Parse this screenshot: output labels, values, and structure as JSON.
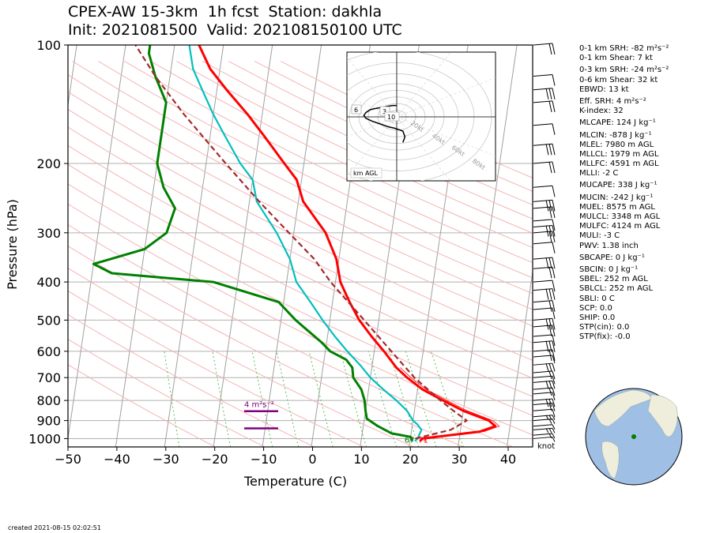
{
  "header": {
    "title_line1": "CPEX-AW 15-3km  1h fcst  Station: dakhla",
    "title_line2": "Init: 2021081500  Valid: 202108150100 UTC"
  },
  "stats": [
    "0-1 km SRH: -82 m²s⁻²",
    "0-1 km Shear: 7 kt",
    "0-3 km SRH: -24 m²s⁻²",
    "0-6 km Shear: 32 kt",
    "EBWD: 13 kt",
    "Eff. SRH: 4 m²s⁻²",
    "K-index: 32",
    "MLCAPE: 124 J kg⁻¹",
    "MLCIN: -878 J kg⁻¹",
    "MLEL: 7980 m AGL",
    "MLLCL: 1979 m AGL",
    "MLLFC: 4591 m AGL",
    "MLLI: -2 C",
    "MUCAPE: 338 J kg⁻¹",
    "MUCIN: -242 J kg⁻¹",
    "MUEL: 8575 m AGL",
    "MULCL: 3348 m AGL",
    "MULFC: 4124 m AGL",
    "MULI: -3 C",
    "PWV: 1.38 inch",
    "SBCAPE: 0 J kg⁻¹",
    "SBCIN: 0 J kg⁻¹",
    "SBEL: 252 m AGL",
    "SBLCL: 252 m AGL",
    "SBLI: 0 C",
    "SCP: 0.0",
    "SHIP: 0.0",
    "STP(cin): 0.0",
    "STP(fix): -0.0"
  ],
  "footer": {
    "created": "created 2021-08-15 02:02:51"
  },
  "knot_label": "knot",
  "colors": {
    "temperature": "#ff0000",
    "dewpoint": "#008000",
    "wetbulb": "#00bfbf",
    "parcel": "#a52a2a",
    "srh_layer": "#800080",
    "isotherm": "#a0a0a0",
    "dry_adiabat": "#f4b4b4",
    "mixing_ratio": "#5cbf5c"
  },
  "chart_data": {
    "type": "line",
    "xlabel": "Temperature (C)",
    "ylabel": "Pressure (hPa)",
    "xlim": [
      -50,
      45
    ],
    "ylim": [
      1050,
      100
    ],
    "y_scale": "log",
    "x_ticks": [
      -50,
      -40,
      -30,
      -20,
      -10,
      0,
      10,
      20,
      30,
      40
    ],
    "x_tick_labels": [
      "−50",
      "−40",
      "−30",
      "−20",
      "−10",
      "0",
      "10",
      "20",
      "30",
      "40"
    ],
    "y_ticks": [
      100,
      200,
      300,
      400,
      500,
      600,
      700,
      800,
      900,
      1000
    ],
    "surface_labels": {
      "dewpoint": "67",
      "temperature": "71"
    },
    "srh_label": "4 m²s⁻²",
    "series": [
      {
        "key": "temperature",
        "points": [
          [
            1015,
            22
          ],
          [
            1000,
            22.5
          ],
          [
            980,
            28
          ],
          [
            960,
            34
          ],
          [
            930,
            37
          ],
          [
            900,
            35.5
          ],
          [
            850,
            30
          ],
          [
            800,
            25.5
          ],
          [
            750,
            21
          ],
          [
            700,
            17.5
          ],
          [
            660,
            15
          ],
          [
            600,
            12
          ],
          [
            550,
            9
          ],
          [
            500,
            6
          ],
          [
            450,
            3.5
          ],
          [
            400,
            1
          ],
          [
            350,
            -0.5
          ],
          [
            300,
            -3.5
          ],
          [
            250,
            -9
          ],
          [
            220,
            -11
          ],
          [
            200,
            -14
          ],
          [
            170,
            -19
          ],
          [
            150,
            -23
          ],
          [
            130,
            -28
          ],
          [
            115,
            -32
          ],
          [
            100,
            -35
          ]
        ]
      },
      {
        "key": "wetbulb",
        "points": [
          [
            1015,
            21
          ],
          [
            1000,
            21.5
          ],
          [
            950,
            22
          ],
          [
            920,
            21
          ],
          [
            900,
            20
          ],
          [
            850,
            18.5
          ],
          [
            800,
            16
          ],
          [
            750,
            13
          ],
          [
            700,
            10
          ],
          [
            650,
            7.5
          ],
          [
            600,
            4.5
          ],
          [
            550,
            1.5
          ],
          [
            500,
            -1.5
          ],
          [
            450,
            -4.5
          ],
          [
            400,
            -8
          ],
          [
            350,
            -10
          ],
          [
            300,
            -13.5
          ],
          [
            250,
            -18.5
          ],
          [
            220,
            -20
          ],
          [
            200,
            -23
          ],
          [
            170,
            -27
          ],
          [
            150,
            -30
          ],
          [
            130,
            -33
          ],
          [
            115,
            -35.5
          ],
          [
            100,
            -37
          ]
        ]
      },
      {
        "key": "dewpoint",
        "points": [
          [
            1015,
            20.5
          ],
          [
            990,
            20
          ],
          [
            970,
            16
          ],
          [
            930,
            13
          ],
          [
            890,
            10.5
          ],
          [
            850,
            10
          ],
          [
            800,
            9.5
          ],
          [
            750,
            8.5
          ],
          [
            700,
            6.5
          ],
          [
            660,
            6
          ],
          [
            630,
            4.5
          ],
          [
            600,
            1
          ],
          [
            570,
            -1
          ],
          [
            500,
            -7
          ],
          [
            450,
            -11
          ],
          [
            400,
            -25
          ],
          [
            380,
            -46
          ],
          [
            360,
            -50
          ],
          [
            330,
            -40
          ],
          [
            300,
            -36
          ],
          [
            260,
            -35
          ],
          [
            230,
            -38
          ],
          [
            200,
            -40
          ],
          [
            160,
            -40
          ],
          [
            140,
            -40
          ],
          [
            120,
            -43
          ],
          [
            105,
            -45
          ],
          [
            100,
            -45
          ]
        ]
      },
      {
        "key": "parcel",
        "points": [
          [
            1000,
            21
          ],
          [
            950,
            28
          ],
          [
            900,
            31
          ],
          [
            850,
            28
          ],
          [
            800,
            25
          ],
          [
            700,
            19
          ],
          [
            600,
            13.5
          ],
          [
            500,
            7
          ],
          [
            400,
            -1
          ],
          [
            350,
            -5
          ],
          [
            300,
            -11
          ],
          [
            250,
            -18
          ],
          [
            200,
            -26
          ],
          [
            150,
            -36
          ],
          [
            120,
            -43
          ],
          [
            100,
            -48
          ]
        ]
      }
    ],
    "srh_layer_pressures": [
      850,
      940
    ],
    "wind_barbs_pressures": [
      1000,
      980,
      950,
      930,
      900,
      880,
      850,
      820,
      800,
      770,
      750,
      720,
      700,
      680,
      650,
      620,
      600,
      570,
      550,
      520,
      500,
      470,
      450,
      420,
      400,
      370,
      350,
      320,
      300,
      290,
      280,
      260,
      250,
      230,
      200,
      180,
      160,
      140,
      130,
      120,
      100
    ],
    "hodograph": {
      "labels": [
        "6",
        "3",
        "10"
      ],
      "ring_labels": [
        "20kt",
        "40kt",
        "60kt",
        "80kt"
      ],
      "units_label": "km AGL",
      "trace_uv": [
        [
          3,
          -18
        ],
        [
          4,
          -14
        ],
        [
          3,
          -10
        ],
        [
          -1,
          -8
        ],
        [
          -4,
          -7
        ],
        [
          -6,
          -6
        ],
        [
          -8,
          -5
        ],
        [
          -12,
          -3
        ],
        [
          -15,
          -1
        ],
        [
          -16,
          1
        ],
        [
          -15,
          3
        ],
        [
          -13,
          5
        ],
        [
          -10,
          6
        ],
        [
          -6,
          7
        ],
        [
          -2,
          8
        ],
        [
          0,
          8
        ]
      ]
    }
  }
}
